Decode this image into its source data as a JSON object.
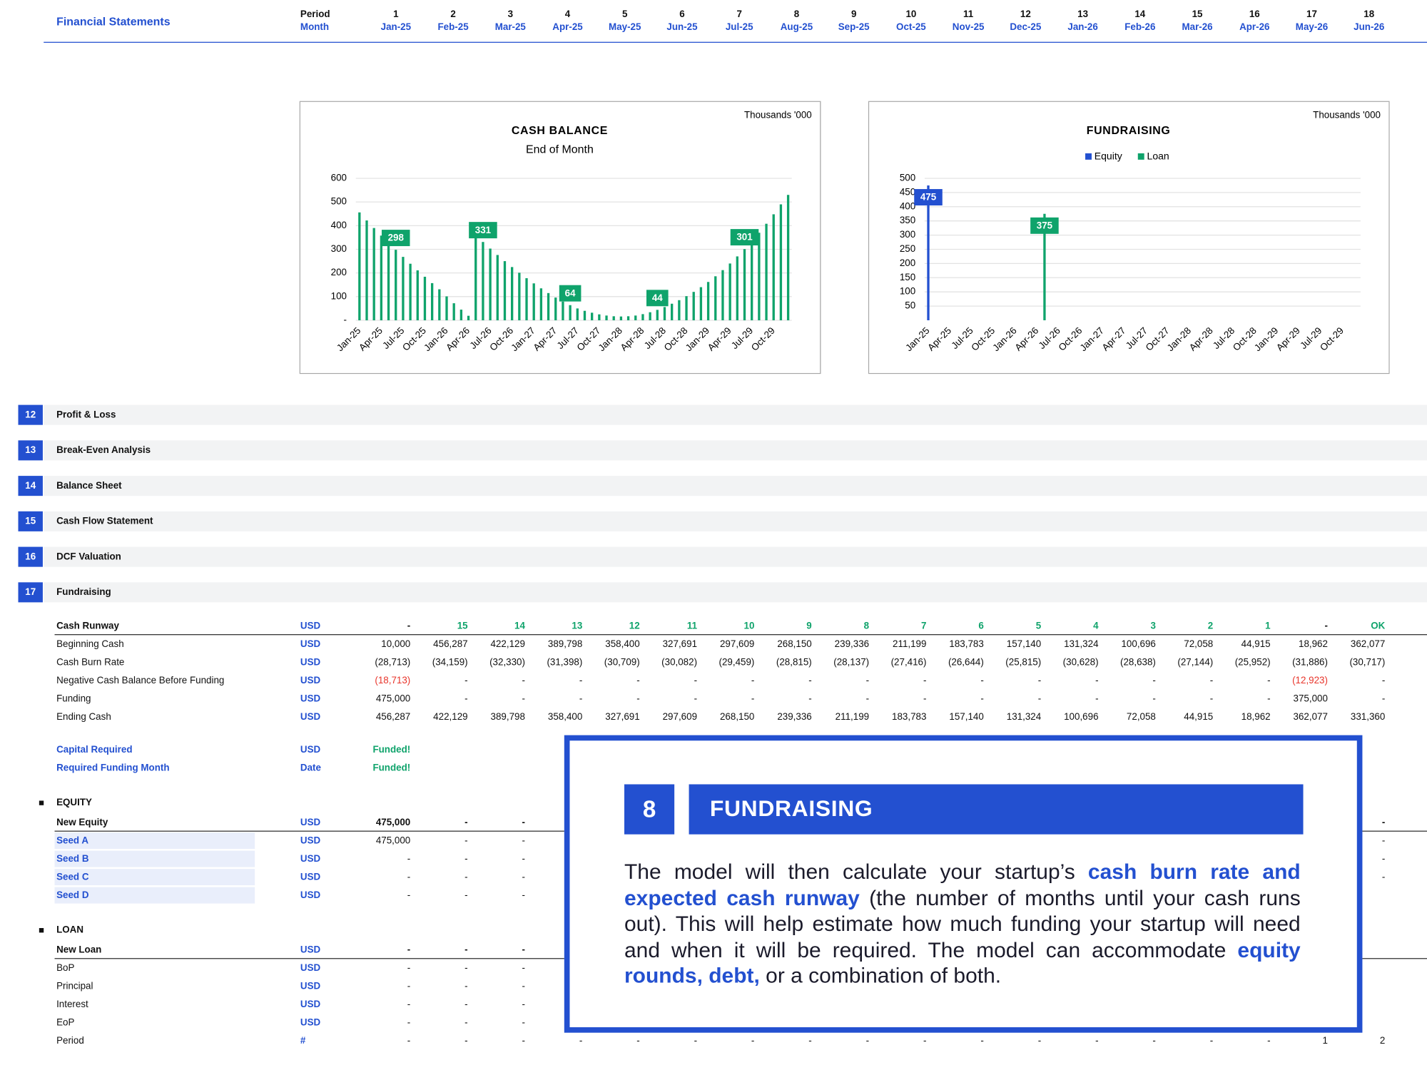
{
  "header": {
    "title": "Financial Statements",
    "period_label": "Period",
    "month_label": "Month",
    "periods": [
      1,
      2,
      3,
      4,
      5,
      6,
      7,
      8,
      9,
      10,
      11,
      12,
      13,
      14,
      15,
      16,
      17,
      18
    ],
    "months": [
      "Jan-25",
      "Feb-25",
      "Mar-25",
      "Apr-25",
      "May-25",
      "Jun-25",
      "Jul-25",
      "Aug-25",
      "Sep-25",
      "Oct-25",
      "Nov-25",
      "Dec-25",
      "Jan-26",
      "Feb-26",
      "Mar-26",
      "Apr-26",
      "May-26",
      "Jun-26"
    ]
  },
  "chart_data": [
    {
      "type": "bar",
      "title": "CASH BALANCE",
      "subtitle": "End of Month",
      "unit_note": "Thousands '000",
      "categories": [
        "Jan-25",
        null,
        null,
        "Apr-25",
        null,
        null,
        "Jul-25",
        null,
        null,
        "Oct-25",
        null,
        null,
        "Jan-26",
        null,
        null,
        "Apr-26",
        null,
        null,
        "Jul-26",
        null,
        null,
        "Oct-26",
        null,
        null,
        "Jan-27",
        null,
        null,
        "Apr-27",
        null,
        null,
        "Jul-27",
        null,
        null,
        "Oct-27",
        null,
        null,
        "Jan-28",
        null,
        null,
        "Apr-28",
        null,
        null,
        "Jul-28",
        null,
        null,
        "Oct-28",
        null,
        null,
        "Jan-29",
        null,
        null,
        "Apr-29",
        null,
        null,
        "Jul-29",
        null,
        null,
        "Oct-29",
        null,
        null
      ],
      "values": [
        456,
        422,
        390,
        358,
        328,
        298,
        268,
        239,
        211,
        184,
        157,
        131,
        101,
        72,
        45,
        19,
        362,
        331,
        303,
        276,
        250,
        225,
        201,
        178,
        156,
        135,
        115,
        96,
        79,
        64,
        50,
        40,
        32,
        25,
        20,
        17,
        16,
        17,
        20,
        26,
        34,
        44,
        56,
        70,
        85,
        102,
        120,
        140,
        162,
        186,
        212,
        240,
        270,
        301,
        335,
        370,
        408,
        448,
        490,
        530
      ],
      "value_labels": [
        null,
        null,
        null,
        null,
        null,
        "298",
        null,
        null,
        null,
        null,
        null,
        null,
        null,
        null,
        null,
        null,
        null,
        "331",
        null,
        null,
        null,
        null,
        null,
        null,
        null,
        null,
        null,
        null,
        null,
        "64",
        null,
        null,
        null,
        null,
        null,
        null,
        null,
        null,
        null,
        null,
        null,
        "44",
        null,
        null,
        null,
        null,
        null,
        null,
        null,
        null,
        null,
        null,
        null,
        "301",
        null,
        null,
        null,
        null,
        null,
        null
      ],
      "color": "#0fa36b",
      "label_position": "outside_end",
      "ylim": [
        0,
        600
      ],
      "yticks": [
        {
          "value": 0,
          "label": "-"
        },
        100,
        200,
        300,
        400,
        500,
        600
      ],
      "grid": true
    },
    {
      "type": "bar",
      "title": "FUNDRAISING",
      "unit_note": "Thousands '000",
      "categories": [
        "Jan-25",
        null,
        null,
        "Apr-25",
        null,
        null,
        "Jul-25",
        null,
        null,
        "Oct-25",
        null,
        null,
        "Jan-26",
        null,
        null,
        "Apr-26",
        null,
        null,
        "Jul-26",
        null,
        null,
        "Oct-26",
        null,
        null,
        "Jan-27",
        null,
        null,
        "Apr-27",
        null,
        null,
        "Jul-27",
        null,
        null,
        "Oct-27",
        null,
        null,
        "Jan-28",
        null,
        null,
        "Apr-28",
        null,
        null,
        "Jul-28",
        null,
        null,
        "Oct-28",
        null,
        null,
        "Jan-29",
        null,
        null,
        "Apr-29",
        null,
        null,
        "Jul-29",
        null,
        null,
        "Oct-29",
        null,
        null
      ],
      "series": [
        {
          "name": "Equity",
          "color": "#2350d0",
          "values": [
            475,
            0,
            0,
            0,
            0,
            0,
            0,
            0,
            0,
            0,
            0,
            0,
            0,
            0,
            0,
            0,
            0,
            0,
            0,
            0,
            0,
            0,
            0,
            0,
            0,
            0,
            0,
            0,
            0,
            0,
            0,
            0,
            0,
            0,
            0,
            0,
            0,
            0,
            0,
            0,
            0,
            0,
            0,
            0,
            0,
            0,
            0,
            0,
            0,
            0,
            0,
            0,
            0,
            0,
            0,
            0,
            0,
            0,
            0,
            0
          ],
          "value_labels": [
            "475",
            null,
            null,
            null,
            null,
            null,
            null,
            null,
            null,
            null,
            null,
            null,
            null,
            null,
            null,
            null,
            null,
            null,
            null,
            null,
            null,
            null,
            null,
            null,
            null,
            null,
            null,
            null,
            null,
            null,
            null,
            null,
            null,
            null,
            null,
            null,
            null,
            null,
            null,
            null,
            null,
            null,
            null,
            null,
            null,
            null,
            null,
            null,
            null,
            null,
            null,
            null,
            null,
            null,
            null,
            null,
            null,
            null,
            null,
            null
          ]
        },
        {
          "name": "Loan",
          "color": "#0fa36b",
          "values": [
            0,
            0,
            0,
            0,
            0,
            0,
            0,
            0,
            0,
            0,
            0,
            0,
            0,
            0,
            0,
            0,
            375,
            0,
            0,
            0,
            0,
            0,
            0,
            0,
            0,
            0,
            0,
            0,
            0,
            0,
            0,
            0,
            0,
            0,
            0,
            0,
            0,
            0,
            0,
            0,
            0,
            0,
            0,
            0,
            0,
            0,
            0,
            0,
            0,
            0,
            0,
            0,
            0,
            0,
            0,
            0,
            0,
            0,
            0,
            0
          ],
          "value_labels": [
            null,
            null,
            null,
            null,
            null,
            null,
            null,
            null,
            null,
            null,
            null,
            null,
            null,
            null,
            null,
            null,
            "375",
            null,
            null,
            null,
            null,
            null,
            null,
            null,
            null,
            null,
            null,
            null,
            null,
            null,
            null,
            null,
            null,
            null,
            null,
            null,
            null,
            null,
            null,
            null,
            null,
            null,
            null,
            null,
            null,
            null,
            null,
            null,
            null,
            null,
            null,
            null,
            null,
            null,
            null,
            null,
            null,
            null,
            null,
            null
          ]
        }
      ],
      "label_position": "inside_end",
      "legend": "top",
      "ylim": [
        0,
        500
      ],
      "yticks": [
        50,
        100,
        150,
        200,
        250,
        300,
        350,
        400,
        450,
        500
      ],
      "grid": true
    }
  ],
  "sections": [
    {
      "number": 12,
      "title": "Profit & Loss"
    },
    {
      "number": 13,
      "title": "Break-Even Analysis"
    },
    {
      "number": 14,
      "title": "Balance Sheet"
    },
    {
      "number": 15,
      "title": "Cash Flow Statement"
    },
    {
      "number": 16,
      "title": "DCF Valuation"
    },
    {
      "number": 17,
      "title": "Fundraising"
    }
  ],
  "cash_flow": {
    "rows": [
      {
        "label": "Cash Runway",
        "unit": "USD",
        "color": "#0fa36b",
        "cells": [
          "-",
          "15",
          "14",
          "13",
          "12",
          "11",
          "10",
          "9",
          "8",
          "7",
          "6",
          "5",
          "4",
          "3",
          "2",
          "1",
          "-",
          "OK"
        ]
      },
      {
        "label": "Beginning Cash",
        "unit": "USD",
        "cells": [
          "10,000",
          "456,287",
          "422,129",
          "389,798",
          "358,400",
          "327,691",
          "297,609",
          "268,150",
          "239,336",
          "211,199",
          "183,783",
          "157,140",
          "131,324",
          "100,696",
          "72,058",
          "44,915",
          "18,962",
          "362,077"
        ]
      },
      {
        "label": "Cash Burn Rate",
        "unit": "USD",
        "cells": [
          "(28,713)",
          "(34,159)",
          "(32,330)",
          "(31,398)",
          "(30,709)",
          "(30,082)",
          "(29,459)",
          "(28,815)",
          "(28,137)",
          "(27,416)",
          "(26,644)",
          "(25,815)",
          "(30,628)",
          "(28,638)",
          "(27,144)",
          "(25,952)",
          "(31,886)",
          "(30,717)"
        ]
      },
      {
        "label": "Negative Cash Balance Before Funding",
        "unit": "USD",
        "color": "#e8352b",
        "cells": [
          "(18,713)",
          "-",
          "-",
          "-",
          "-",
          "-",
          "-",
          "-",
          "-",
          "-",
          "-",
          "-",
          "-",
          "-",
          "-",
          "-",
          "(12,923)",
          "-"
        ]
      },
      {
        "label": "Funding",
        "unit": "USD",
        "cells": [
          "475,000",
          "-",
          "-",
          "-",
          "-",
          "-",
          "-",
          "-",
          "-",
          "-",
          "-",
          "-",
          "-",
          "-",
          "-",
          "-",
          "375,000",
          "-"
        ]
      },
      {
        "label": "Ending Cash",
        "unit": "USD",
        "cells": [
          "456,287",
          "422,129",
          "389,798",
          "358,400",
          "327,691",
          "297,609",
          "268,150",
          "239,336",
          "211,199",
          "183,783",
          "157,140",
          "131,324",
          "100,696",
          "72,058",
          "44,915",
          "18,962",
          "362,077",
          "331,360"
        ]
      }
    ]
  },
  "funding_status": {
    "rows": [
      {
        "label": "Capital Required",
        "unit": "USD",
        "color": "#0fa36b",
        "cells": [
          "Funded!"
        ]
      },
      {
        "label": "Required Funding Month",
        "unit": "Date",
        "color": "#0fa36b",
        "cells": [
          "Funded!"
        ]
      }
    ]
  },
  "equity": {
    "title": "EQUITY",
    "rows": [
      {
        "label": "New Equity",
        "unit": "USD",
        "cells": [
          "475,000",
          "-",
          "-",
          null,
          null,
          null,
          null,
          null,
          null,
          null,
          null,
          null,
          null,
          null,
          null,
          null,
          null,
          "-"
        ]
      },
      {
        "label": "Seed A",
        "unit": "USD",
        "cells": [
          "475,000",
          "-",
          "-",
          null,
          null,
          null,
          null,
          null,
          null,
          null,
          null,
          null,
          null,
          null,
          null,
          null,
          null,
          "-"
        ]
      },
      {
        "label": "Seed B",
        "unit": "USD",
        "cells": [
          "-",
          "-",
          "-",
          null,
          null,
          null,
          null,
          null,
          null,
          null,
          null,
          null,
          null,
          null,
          null,
          null,
          null,
          "-"
        ]
      },
      {
        "label": "Seed C",
        "unit": "USD",
        "cells": [
          "-",
          "-",
          "-",
          null,
          null,
          null,
          null,
          null,
          null,
          null,
          null,
          null,
          null,
          null,
          null,
          null,
          null,
          "-"
        ]
      },
      {
        "label": "Seed D",
        "unit": "USD",
        "cells": [
          "-",
          "-",
          "-"
        ]
      }
    ]
  },
  "loan": {
    "title": "LOAN",
    "rows": [
      {
        "label": "New Loan",
        "unit": "USD",
        "cells": [
          "-",
          "-",
          "-"
        ]
      },
      {
        "label": "BoP",
        "unit": "USD",
        "cells": [
          "-",
          "-",
          "-"
        ]
      },
      {
        "label": "Principal",
        "unit": "USD",
        "cells": [
          "-",
          "-",
          "-"
        ]
      },
      {
        "label": "Interest",
        "unit": "USD",
        "cells": [
          "-",
          "-",
          "-"
        ]
      },
      {
        "label": "EoP",
        "unit": "USD",
        "cells": [
          "-",
          "-",
          "-"
        ]
      },
      {
        "label": "Period",
        "unit": "#",
        "cells": [
          "-",
          "-",
          "-",
          "-",
          "-",
          "-",
          "-",
          "-",
          "-",
          "-",
          "-",
          "-",
          "-",
          "-",
          "-",
          "-",
          "1",
          "2"
        ]
      }
    ]
  },
  "callout": {
    "number": "8",
    "title": "FUNDRAISING",
    "paragraph": [
      {
        "text": "The model will then calculate your startup’s "
      },
      {
        "text": "cash burn rate and expected cash runway",
        "emphasis": true
      },
      {
        "text": " (the number of months until your cash runs out). This will help estimate how much funding your startup will need and when it will be required. The model can accommodate "
      },
      {
        "text": "equity rounds, debt,",
        "emphasis": true
      },
      {
        "text": " or a combination of both."
      }
    ]
  }
}
